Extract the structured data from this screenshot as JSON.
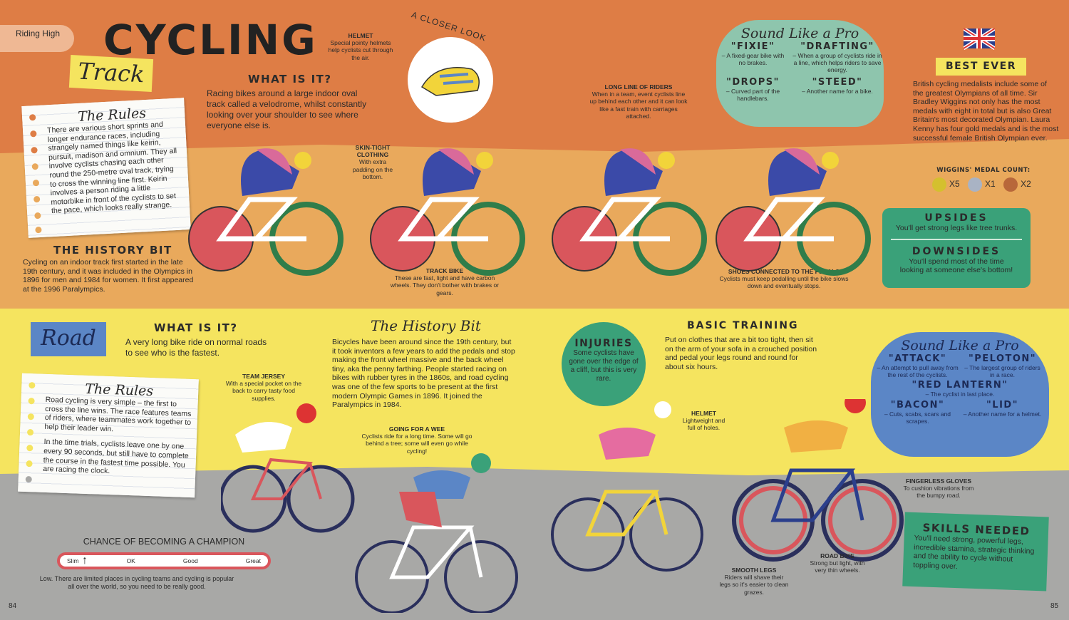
{
  "page_tab": "Riding High",
  "title": "CYCLING",
  "track": {
    "label": "Track",
    "what_title": "WHAT IS IT?",
    "what_text": "Racing bikes around a large indoor oval track called a velodrome, whilst constantly looking over your shoulder to see where everyone else is.",
    "rules_title": "The Rules",
    "rules_text": "There are various short sprints and longer endurance races, including strangely named things like keirin, pursuit, madison and omnium. They all involve cyclists chasing each other round the 250-metre oval track, trying to cross the winning line first. Keirin involves a person riding a little motorbike in front of the cyclists to set the pace, which looks really strange.",
    "history_title": "THE HISTORY BIT",
    "history_text": "Cycling on an indoor track first started in the late 19th century, and it was included in the Olympics in 1896 for men and 1984 for women. It first appeared at the 1996 Paralympics.",
    "closer_look": "A CLOSER LOOK",
    "helmet_title": "HELMET",
    "helmet_text": "Special pointy helmets help cyclists cut through the air.",
    "clothing_title": "SKIN-TIGHT CLOTHING",
    "clothing_text": "With extra padding on the bottom.",
    "bike_title": "TRACK BIKE",
    "bike_text": "These are fast, light and have carbon wheels. They don't bother with brakes or gears.",
    "line_title": "LONG LINE OF RIDERS",
    "line_text": "When in a team, event cyclists line up behind each other and it can look like a fast train with carriages attached.",
    "shoes_title": "SHOES CONNECTED TO THE PEDALS",
    "shoes_text": "Cyclists must keep pedalling until the bike slows down and eventually stops.",
    "pro_title": "Sound Like a Pro",
    "pro_terms": [
      {
        "term": "\"FIXIE\"",
        "def": "– A fixed-gear bike with no brakes."
      },
      {
        "term": "\"DRAFTING\"",
        "def": "– When a group of cyclists ride in a line, which helps riders to save energy."
      },
      {
        "term": "\"DROPS\"",
        "def": "– Curved part of the handlebars."
      },
      {
        "term": "\"STEED\"",
        "def": "– Another name for a bike."
      }
    ],
    "best_title": "BEST EVER",
    "best_text": "British cycling medalists include some of the greatest Olympians of all time. Sir Bradley Wiggins not only has the most medals with eight in total but is also Great Britain's most decorated Olympian. Laura Kenny has four gold medals and is the most successful female British Olympian ever.",
    "medal_title": "WIGGINS' MEDAL COUNT:",
    "medals": [
      {
        "n": "1",
        "count": "X5",
        "color": "#d4c02e"
      },
      {
        "n": "2",
        "count": "X1",
        "color": "#a9b3c4"
      },
      {
        "n": "3",
        "count": "X2",
        "color": "#b8673a"
      }
    ],
    "upsides_title": "UPSIDES",
    "upsides_text": "You'll get strong legs like tree trunks.",
    "downsides_title": "DOWNSIDES",
    "downsides_text": "You'll spend most of the time looking at someone else's bottom!"
  },
  "road": {
    "label": "Road",
    "what_title": "WHAT IS IT?",
    "what_text": "A very long bike ride on normal roads to see who is the fastest.",
    "rules_title": "The Rules",
    "rules_text1": "Road cycling is very simple – the first to cross the line wins. The race features teams of riders, where teammates work together to help their leader win.",
    "rules_text2": "In the time trials, cyclists leave one by one every 90 seconds, but still have to complete the course in the fastest time possible. You are racing the clock.",
    "jersey_title": "TEAM JERSEY",
    "jersey_text": "With a special pocket on the back to carry tasty food supplies.",
    "history_title": "The History Bit",
    "history_text": "Bicycles have been around since the 19th century, but it took inventors a few years to add the pedals and stop making the front wheel massive and the back wheel tiny, aka the penny farthing. People started racing on bikes with rubber tyres in the 1860s, and road cycling was one of the few sports to be present at the first modern Olympic Games in 1896. It joined the Paralympics in 1984.",
    "wee_title": "GOING FOR A WEE",
    "wee_text": "Cyclists ride for a long time. Some will go behind a tree; some will even go while cycling!",
    "injuries_title": "INJURIES",
    "injuries_text": "Some cyclists have gone over the edge of a cliff, but this is very rare.",
    "training_title": "BASIC TRAINING",
    "training_text": "Put on clothes that are a bit too tight, then sit on the arm of your sofa in a crouched position and pedal your legs round and round for about six hours.",
    "helmet_title": "HELMET",
    "helmet_text": "Lightweight and full of holes.",
    "gloves_title": "FINGERLESS GLOVES",
    "gloves_text": "To cushion vibrations from the bumpy road.",
    "legs_title": "SMOOTH LEGS",
    "legs_text": "Riders will shave their legs so it's easier to clean grazes.",
    "bike_title": "ROAD BIKE",
    "bike_text": "Strong but light, with very thin wheels.",
    "pro_title": "Sound Like a Pro",
    "pro_terms": [
      {
        "term": "\"ATTACK\"",
        "def": "– An attempt to pull away from the rest of the cyclists."
      },
      {
        "term": "\"PELOTON\"",
        "def": "– The largest group of riders in a race."
      },
      {
        "term": "\"RED LANTERN\"",
        "def": "– The cyclist in last place."
      },
      {
        "term": "\"BACON\"",
        "def": "– Cuts, scabs, scars and scrapes."
      },
      {
        "term": "\"LID\"",
        "def": "– Another name for a helmet."
      }
    ],
    "skills_title": "SKILLS NEEDED",
    "skills_text": "You'll need strong, powerful legs, incredible stamina, strategic thinking and the ability to cycle without toppling over.",
    "chance_title": "CHANCE OF BECOMING A CHAMPION",
    "chance_levels": [
      "Slim",
      "OK",
      "Good",
      "Great"
    ],
    "chance_value": 0.08,
    "chance_text": "Low. There are limited places in cycling teams and cycling is popular all over the world, so you need to be really good."
  },
  "page_left": "84",
  "page_right": "85",
  "colors": {
    "orange": "#de7d45",
    "tan": "#e9a95c",
    "yellow": "#f5e45f",
    "grey": "#a8a8a6",
    "green": "#3aa179",
    "mint": "#8ec5ad",
    "blue": "#5b86c6"
  }
}
